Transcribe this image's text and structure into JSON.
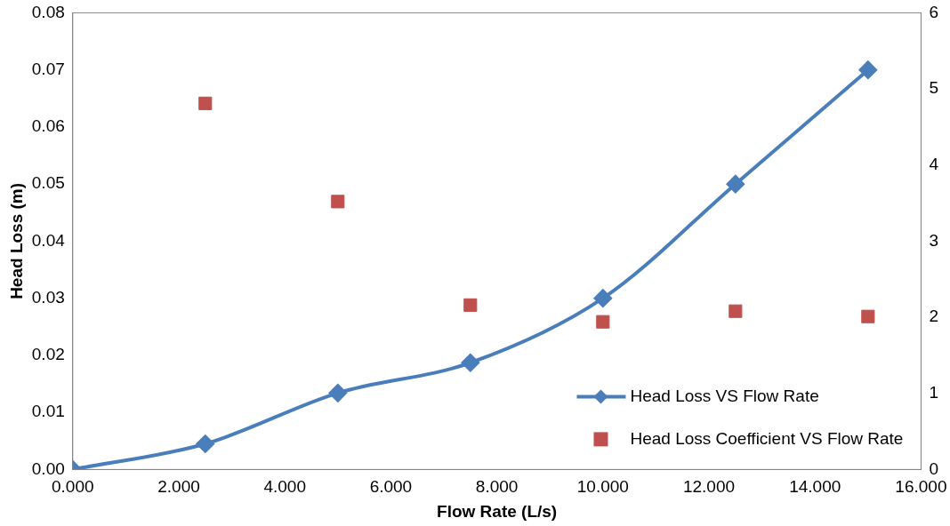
{
  "chart_data": {
    "type": "line",
    "xlabel": "Flow Rate (L/s)",
    "ylabel": "Head Loss (m)",
    "x": [
      0,
      2.5,
      5,
      7.5,
      10,
      12.5,
      15
    ],
    "series": [
      {
        "name": "Head Loss VS Flow Rate",
        "color": "#4a7ebb",
        "marker": "diamond",
        "values": [
          0,
          0.0045,
          0.0134,
          0.0187,
          0.03,
          0.05,
          0.07
        ]
      },
      {
        "name": "Head Loss Coefficient VS Flow Rate",
        "type": "scatter",
        "axis": "y2",
        "color": "#c0504d",
        "marker": "square",
        "x": [
          2.5,
          5,
          7.5,
          10,
          12.5,
          15
        ],
        "values": [
          4.81,
          3.52,
          2.16,
          1.94,
          2.08,
          2.01
        ]
      }
    ],
    "xlim": [
      0,
      16
    ],
    "xticks": [
      {
        "value": 0,
        "label": "0.000"
      },
      {
        "value": 2,
        "label": "2.000"
      },
      {
        "value": 4,
        "label": "4.000"
      },
      {
        "value": 6,
        "label": "6.000"
      },
      {
        "value": 8,
        "label": "8.000"
      },
      {
        "value": 10,
        "label": "10.000"
      },
      {
        "value": 12,
        "label": "12.000"
      },
      {
        "value": 14,
        "label": "14.000"
      },
      {
        "value": 16,
        "label": "16.000"
      }
    ],
    "ylim": [
      0,
      0.08
    ],
    "yticks": [
      {
        "value": 0,
        "label": "0.00"
      },
      0.01,
      0.02,
      0.03,
      0.04,
      0.05,
      0.06,
      0.07,
      0.08
    ],
    "y2lim": [
      0,
      6
    ],
    "y2ticks": [
      0,
      1,
      2,
      3,
      4,
      5,
      6
    ],
    "grid": false,
    "legend": "bottom right"
  }
}
